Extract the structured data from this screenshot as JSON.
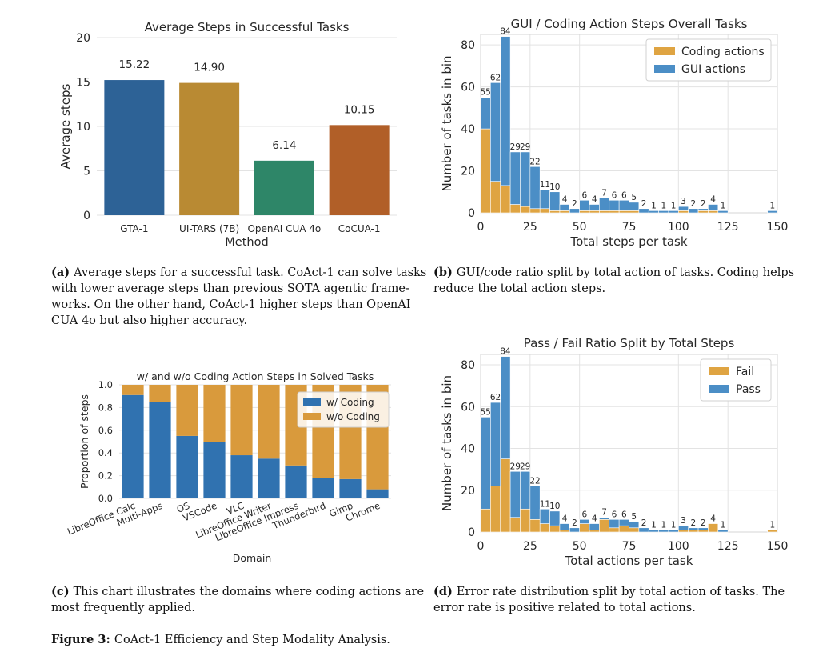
{
  "chart_data": [
    {
      "id": "a",
      "type": "bar",
      "title": "Average Steps in Successful Tasks",
      "xlabel": "Method",
      "ylabel": "Average steps",
      "ylim": [
        0,
        20
      ],
      "yticks": [
        "0",
        "5",
        "10",
        "15",
        "20"
      ],
      "categories": [
        "GTA-1",
        "UI-TARS (7B)",
        "OpenAI CUA 4o",
        "CoCUA-1"
      ],
      "values": [
        15.22,
        14.9,
        6.14,
        10.15
      ],
      "value_labels": [
        "15.22",
        "14.90",
        "6.14",
        "10.15"
      ],
      "colors": [
        "#2d6296",
        "#b98a33",
        "#2e8668",
        "#b15f28"
      ],
      "grid": true
    },
    {
      "id": "b",
      "type": "bar",
      "stacked": true,
      "title": "GUI / Coding Action Steps Overall Tasks",
      "xlabel": "Total steps per task",
      "ylabel": "Number of tasks in bin",
      "xlim": [
        0,
        150
      ],
      "ylim": [
        0,
        85
      ],
      "xticks": [
        "0",
        "25",
        "50",
        "75",
        "100",
        "125",
        "150"
      ],
      "yticks": [
        "0",
        "20",
        "40",
        "60",
        "80"
      ],
      "bin_width": 5,
      "bin_starts": [
        0,
        5,
        10,
        15,
        20,
        25,
        30,
        35,
        40,
        45,
        50,
        55,
        60,
        65,
        70,
        75,
        80,
        85,
        90,
        95,
        100,
        105,
        110,
        115,
        120,
        145
      ],
      "totals": [
        55,
        62,
        84,
        29,
        29,
        22,
        11,
        10,
        4,
        2,
        6,
        4,
        7,
        6,
        6,
        5,
        2,
        1,
        1,
        1,
        3,
        2,
        2,
        4,
        1,
        1
      ],
      "total_labels": [
        "55",
        "62",
        "84",
        "29",
        "29",
        "22",
        "11",
        "10",
        "4",
        "2",
        "6",
        "4",
        "7",
        "6",
        "6",
        "5",
        "2",
        "1",
        "1",
        "1",
        "3",
        "2",
        "2",
        "4",
        "1",
        "1"
      ],
      "series": [
        {
          "name": "Coding actions",
          "color": "#dfa442",
          "values": [
            40,
            15,
            13,
            4,
            3,
            2,
            2,
            1,
            1,
            0,
            1,
            1,
            1,
            1,
            1,
            1,
            0,
            0,
            0,
            0,
            1,
            0,
            1,
            1,
            0,
            0
          ]
        },
        {
          "name": "GUI actions",
          "color": "#4b8ec6",
          "values": [
            15,
            47,
            71,
            25,
            26,
            20,
            9,
            9,
            3,
            2,
            5,
            3,
            6,
            5,
            5,
            4,
            2,
            1,
            1,
            1,
            2,
            2,
            1,
            3,
            1,
            1
          ]
        }
      ],
      "legend": "top-right",
      "grid": true
    },
    {
      "id": "c",
      "type": "bar",
      "stacked": true,
      "title": "w/ and w/o Coding Action Steps in Solved Tasks",
      "xlabel": "Domain",
      "ylabel": "Proportion of steps",
      "ylim": [
        0,
        1
      ],
      "yticks": [
        "0.0",
        "0.2",
        "0.4",
        "0.6",
        "0.8",
        "1.0"
      ],
      "categories": [
        "LibreOffice Calc",
        "Multi-Apps",
        "OS",
        "VSCode",
        "VLC",
        "LibreOffice Writer",
        "LibreOffice Impress",
        "Thunderbird",
        "Gimp",
        "Chrome"
      ],
      "series": [
        {
          "name": "w/ Coding",
          "color": "#3072b0",
          "values": [
            0.91,
            0.85,
            0.55,
            0.5,
            0.38,
            0.35,
            0.29,
            0.18,
            0.17,
            0.08
          ]
        },
        {
          "name": "w/o Coding",
          "color": "#d99a3c",
          "values": [
            0.09,
            0.15,
            0.45,
            0.5,
            0.62,
            0.65,
            0.71,
            0.82,
            0.83,
            0.92
          ]
        }
      ],
      "legend": "top-right",
      "grid": true
    },
    {
      "id": "d",
      "type": "bar",
      "stacked": true,
      "title": "Pass / Fail Ratio Split by Total Steps",
      "xlabel": "Total actions per task",
      "ylabel": "Number of tasks in bin",
      "xlim": [
        0,
        150
      ],
      "ylim": [
        0,
        85
      ],
      "xticks": [
        "0",
        "25",
        "50",
        "75",
        "100",
        "125",
        "150"
      ],
      "yticks": [
        "0",
        "20",
        "40",
        "60",
        "80"
      ],
      "bin_width": 5,
      "bin_starts": [
        0,
        5,
        10,
        15,
        20,
        25,
        30,
        35,
        40,
        45,
        50,
        55,
        60,
        65,
        70,
        75,
        80,
        85,
        90,
        95,
        100,
        105,
        110,
        115,
        120,
        145
      ],
      "totals": [
        55,
        62,
        84,
        29,
        29,
        22,
        11,
        10,
        4,
        2,
        6,
        4,
        7,
        6,
        6,
        5,
        2,
        1,
        1,
        1,
        3,
        2,
        2,
        4,
        1,
        1
      ],
      "total_labels": [
        "55",
        "62",
        "84",
        "29",
        "29",
        "22",
        "11",
        "10",
        "4",
        "2",
        "6",
        "4",
        "7",
        "6",
        "6",
        "5",
        "2",
        "1",
        "1",
        "1",
        "3",
        "2",
        "2",
        "4",
        "1",
        "1"
      ],
      "series": [
        {
          "name": "Fail",
          "color": "#dfa442",
          "values": [
            11,
            22,
            35,
            7,
            11,
            6,
            4,
            3,
            1,
            0,
            4,
            1,
            6,
            2,
            3,
            2,
            0,
            0,
            0,
            0,
            1,
            1,
            1,
            4,
            0,
            1
          ]
        },
        {
          "name": "Pass",
          "color": "#4b8ec6",
          "values": [
            44,
            40,
            49,
            22,
            18,
            16,
            7,
            7,
            3,
            2,
            2,
            3,
            1,
            4,
            3,
            3,
            2,
            1,
            1,
            1,
            2,
            1,
            1,
            0,
            1,
            0
          ]
        }
      ],
      "legend": "top-right",
      "grid": true
    }
  ],
  "captions": {
    "a": {
      "tag": "(a)",
      "lines": [
        "Average steps for a successful task. CoAct-1 can solve tasks",
        "with lower average steps than previous SOTA agentic frame-",
        "works. On the other hand, CoAct-1 higher steps than OpenAI",
        "CUA 4o but also higher accuracy."
      ]
    },
    "b": {
      "tag": "(b)",
      "lines": [
        "GUI/code ratio split by total action of tasks. Coding helps",
        "reduce the total action steps."
      ]
    },
    "c": {
      "tag": "(c)",
      "lines": [
        "This chart illustrates the domains where coding actions are",
        "most frequently applied."
      ]
    },
    "d": {
      "tag": "(d)",
      "lines": [
        "Error rate distribution split by total action of tasks.  The",
        "error rate is positive related to total actions."
      ]
    }
  },
  "figure": {
    "tag": "Figure 3:",
    "text": "CoAct-1 Efficiency and Step Modality Analysis."
  }
}
